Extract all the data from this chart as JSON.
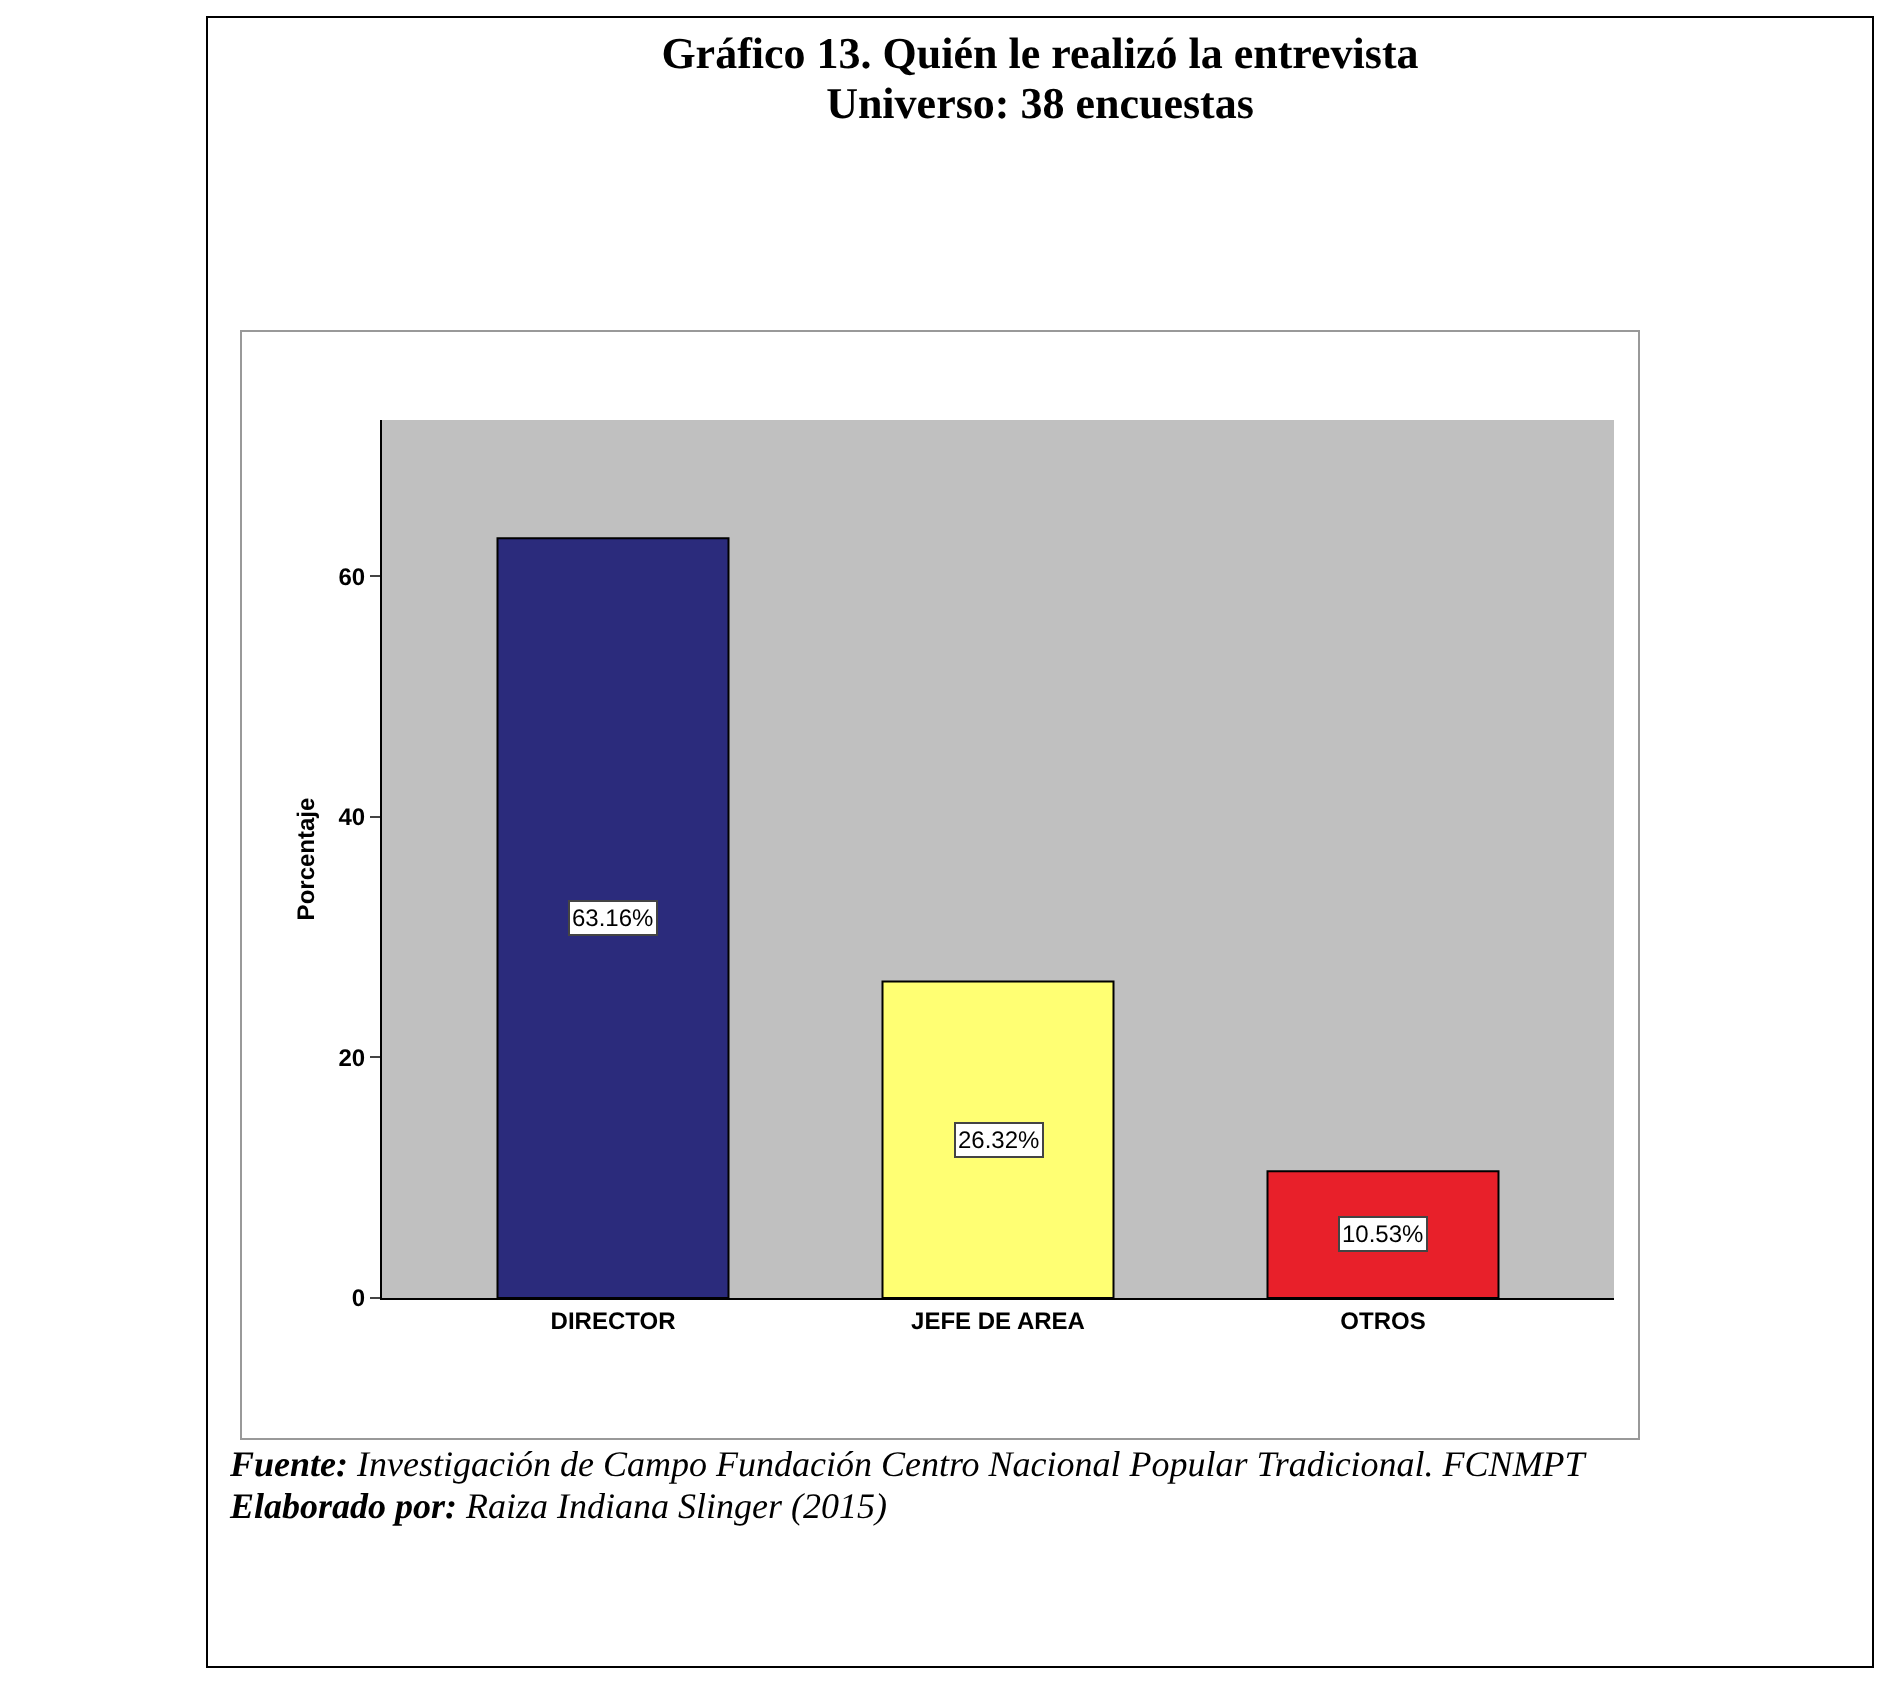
{
  "chart_data": {
    "type": "bar",
    "title": "Gráfico  13. Quién le realizó la entrevista\nUniverso: 38 encuestas",
    "ylabel": "Porcentaje",
    "categories": [
      "DIRECTOR",
      "JEFE DE AREA",
      "OTROS"
    ],
    "values": [
      63.16,
      26.32,
      10.53
    ],
    "colors": [
      "#2b2b7c",
      "#ffff73",
      "#e8202a"
    ],
    "value_labels": [
      "63.16%",
      "26.32%",
      "10.53%"
    ],
    "ylim": [
      0,
      73
    ],
    "yticks": [
      0,
      20,
      40,
      60
    ],
    "grid": false,
    "annotations": [
      "Fuente: Investigación de  Campo  Fundación Centro Nacional  Popular Tradicional. FCNMPT",
      "Elaborado por: Raiza Indiana Slinger (2015)"
    ]
  }
}
